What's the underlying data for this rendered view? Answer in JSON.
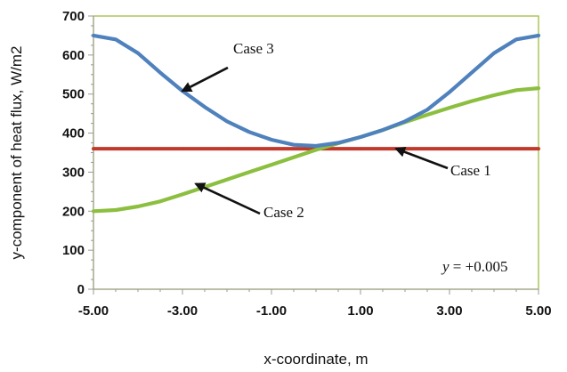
{
  "chart_data": {
    "type": "line",
    "title": "",
    "xlabel": "x-coordinate, m",
    "ylabel": "y-component of heat flux, W/m2",
    "xlim": [
      -5,
      5
    ],
    "ylim": [
      0,
      700
    ],
    "x_ticks": [
      -5,
      -3,
      -1,
      1,
      3,
      5
    ],
    "x_tick_labels": [
      "-5.00",
      "-3.00",
      "-1.00",
      "1.00",
      "3.00",
      "5.00"
    ],
    "y_ticks": [
      0,
      100,
      200,
      300,
      400,
      500,
      600,
      700
    ],
    "y_tick_labels": [
      "0",
      "100",
      "200",
      "300",
      "400",
      "500",
      "600",
      "700"
    ],
    "grid": false,
    "legend": "none",
    "plot_border_color": "#a6c14c",
    "note": {
      "prefix": "y",
      "text": " = +0.005"
    },
    "series": [
      {
        "name": "Case 1",
        "color": "#c0392b",
        "x": [
          -5,
          -4,
          -3,
          -2,
          -1,
          0,
          1,
          2,
          3,
          4,
          5
        ],
        "y": [
          360,
          360,
          360,
          360,
          360,
          360,
          360,
          360,
          360,
          360,
          360
        ]
      },
      {
        "name": "Case 2",
        "color": "#8cbf3f",
        "x": [
          -5,
          -4.5,
          -4,
          -3.5,
          -3,
          -2.5,
          -2,
          -1.5,
          -1,
          -0.5,
          0,
          0.5,
          1,
          1.5,
          2,
          2.5,
          3,
          3.5,
          4,
          4.5,
          5
        ],
        "y": [
          200,
          203,
          212,
          225,
          243,
          262,
          281,
          300,
          319,
          338,
          357,
          374,
          390,
          408,
          428,
          447,
          465,
          482,
          497,
          510,
          515
        ]
      },
      {
        "name": "Case 3",
        "color": "#4f81bd",
        "x": [
          -5,
          -4.5,
          -4,
          -3.5,
          -3,
          -2.5,
          -2,
          -1.5,
          -1,
          -0.5,
          0,
          0.5,
          1,
          1.5,
          2,
          2.5,
          3,
          3.5,
          4,
          4.5,
          5
        ],
        "y": [
          650,
          640,
          605,
          555,
          508,
          467,
          430,
          403,
          383,
          370,
          367,
          375,
          390,
          408,
          430,
          460,
          505,
          555,
          605,
          640,
          650
        ]
      }
    ],
    "annotations": [
      {
        "series": "Case 3",
        "text": "Case 3",
        "arrow_to": {
          "x": -3.0,
          "y": 508
        }
      },
      {
        "series": "Case 1",
        "text": "Case 1",
        "arrow_to": {
          "x": 1.8,
          "y": 360
        }
      },
      {
        "series": "Case 2",
        "text": "Case 2",
        "arrow_to": {
          "x": -2.7,
          "y": 270
        }
      }
    ]
  }
}
